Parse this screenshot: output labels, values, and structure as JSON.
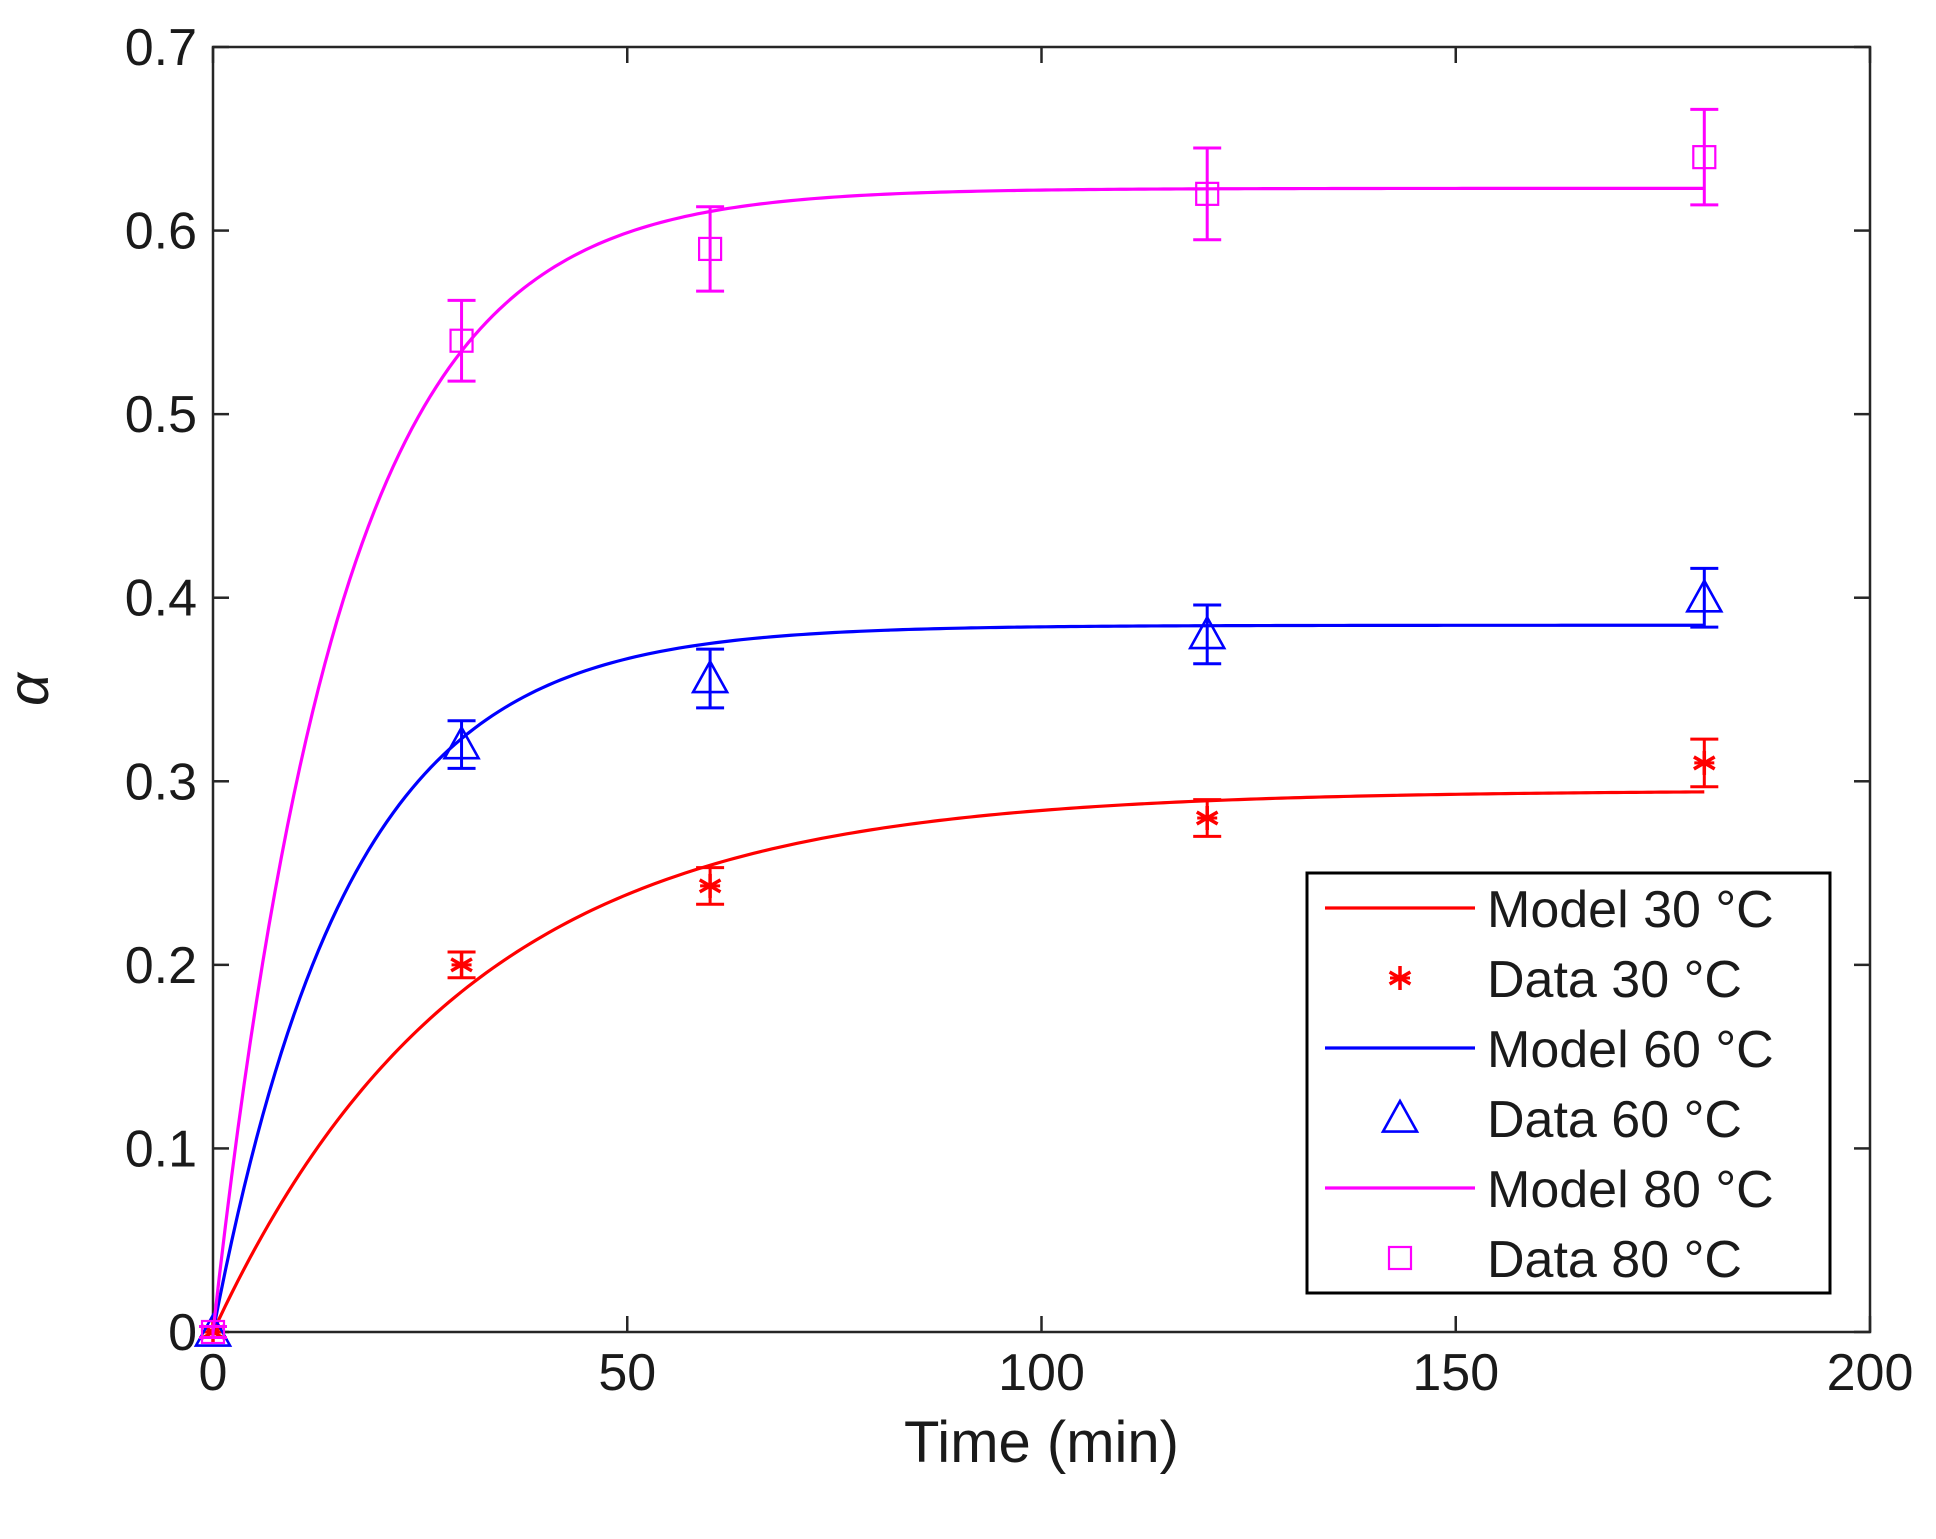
{
  "chart_data": {
    "type": "line",
    "title": "",
    "xlabel": "Time (min)",
    "ylabel": "α",
    "xlim": [
      0,
      200
    ],
    "ylim": [
      0,
      0.7
    ],
    "xticks": [
      0,
      50,
      100,
      150,
      200
    ],
    "xtick_labels": [
      "0",
      "50",
      "100",
      "150",
      "200"
    ],
    "yticks": [
      0,
      0.1,
      0.2,
      0.3,
      0.4,
      0.5,
      0.6,
      0.7
    ],
    "ytick_labels": [
      "0",
      "0.1",
      "0.2",
      "0.3",
      "0.4",
      "0.5",
      "0.6",
      "0.7"
    ],
    "grid": false,
    "legend_position": "bottom-right",
    "series": [
      {
        "name": "Model 30 °C",
        "kind": "model",
        "color": "#ff0000",
        "model": {
          "asymptote": 0.295,
          "rate": 0.033,
          "t_max": 180
        }
      },
      {
        "name": "Data 30 °C",
        "kind": "data",
        "marker": "asterisk",
        "color": "#ff0000",
        "x": [
          0,
          30,
          60,
          120,
          180
        ],
        "y": [
          0,
          0.2,
          0.243,
          0.28,
          0.31
        ],
        "err": [
          0.003,
          0.007,
          0.01,
          0.01,
          0.013
        ]
      },
      {
        "name": "Model 60 °C",
        "kind": "model",
        "color": "#0000ff",
        "model": {
          "asymptote": 0.385,
          "rate": 0.061,
          "t_max": 180
        }
      },
      {
        "name": "Data 60 °C",
        "kind": "data",
        "marker": "triangle",
        "color": "#0000ff",
        "x": [
          0,
          30,
          60,
          120,
          180
        ],
        "y": [
          0,
          0.32,
          0.356,
          0.38,
          0.4
        ],
        "err": [
          0.003,
          0.013,
          0.016,
          0.016,
          0.016
        ]
      },
      {
        "name": "Model 80 °C",
        "kind": "model",
        "color": "#ff00ff",
        "model": {
          "asymptote": 0.623,
          "rate": 0.065,
          "t_max": 180
        }
      },
      {
        "name": "Data 80 °C",
        "kind": "data",
        "marker": "square",
        "color": "#ff00ff",
        "x": [
          0,
          30,
          60,
          120,
          180
        ],
        "y": [
          0,
          0.54,
          0.59,
          0.62,
          0.64
        ],
        "err": [
          0.003,
          0.022,
          0.023,
          0.025,
          0.026
        ]
      }
    ]
  }
}
